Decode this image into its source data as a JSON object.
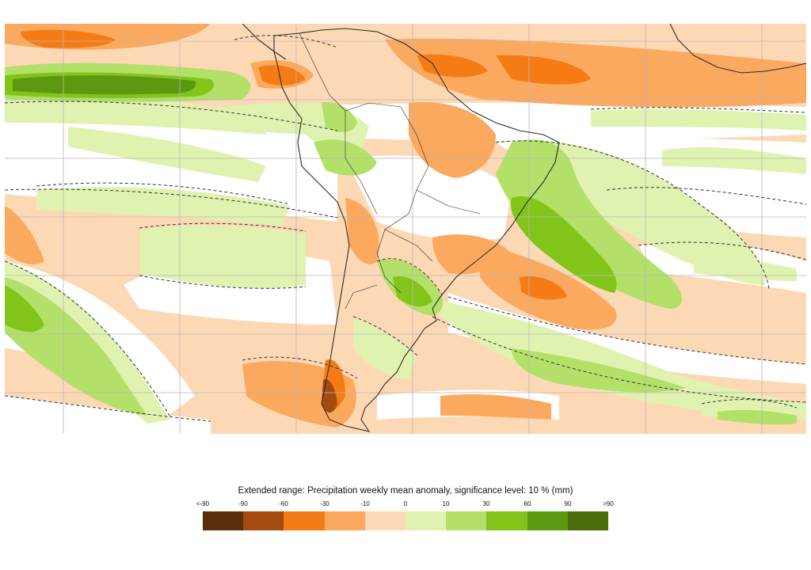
{
  "map": {
    "region": "South America and surrounding oceans",
    "colors": {
      "ocean_base": "#fdd8b5",
      "neutral": "#ffffff",
      "grid": "#b8b8b8",
      "coast": "#2b2b2b",
      "contour": "#333333"
    }
  },
  "legend": {
    "title": "Extended range: Precipitation weekly mean anomaly, significance level: 10 % (mm)",
    "ticks": [
      "<-90",
      "-90",
      "-60",
      "-30",
      "-10",
      "0",
      "10",
      "30",
      "60",
      "90",
      ">90"
    ],
    "colors": [
      "#5b2d0a",
      "#a64b10",
      "#f57c14",
      "#fba95e",
      "#fdd8b5",
      "#e0f2b0",
      "#b2e068",
      "#82c41a",
      "#5b9a10",
      "#4a6e0a"
    ]
  }
}
